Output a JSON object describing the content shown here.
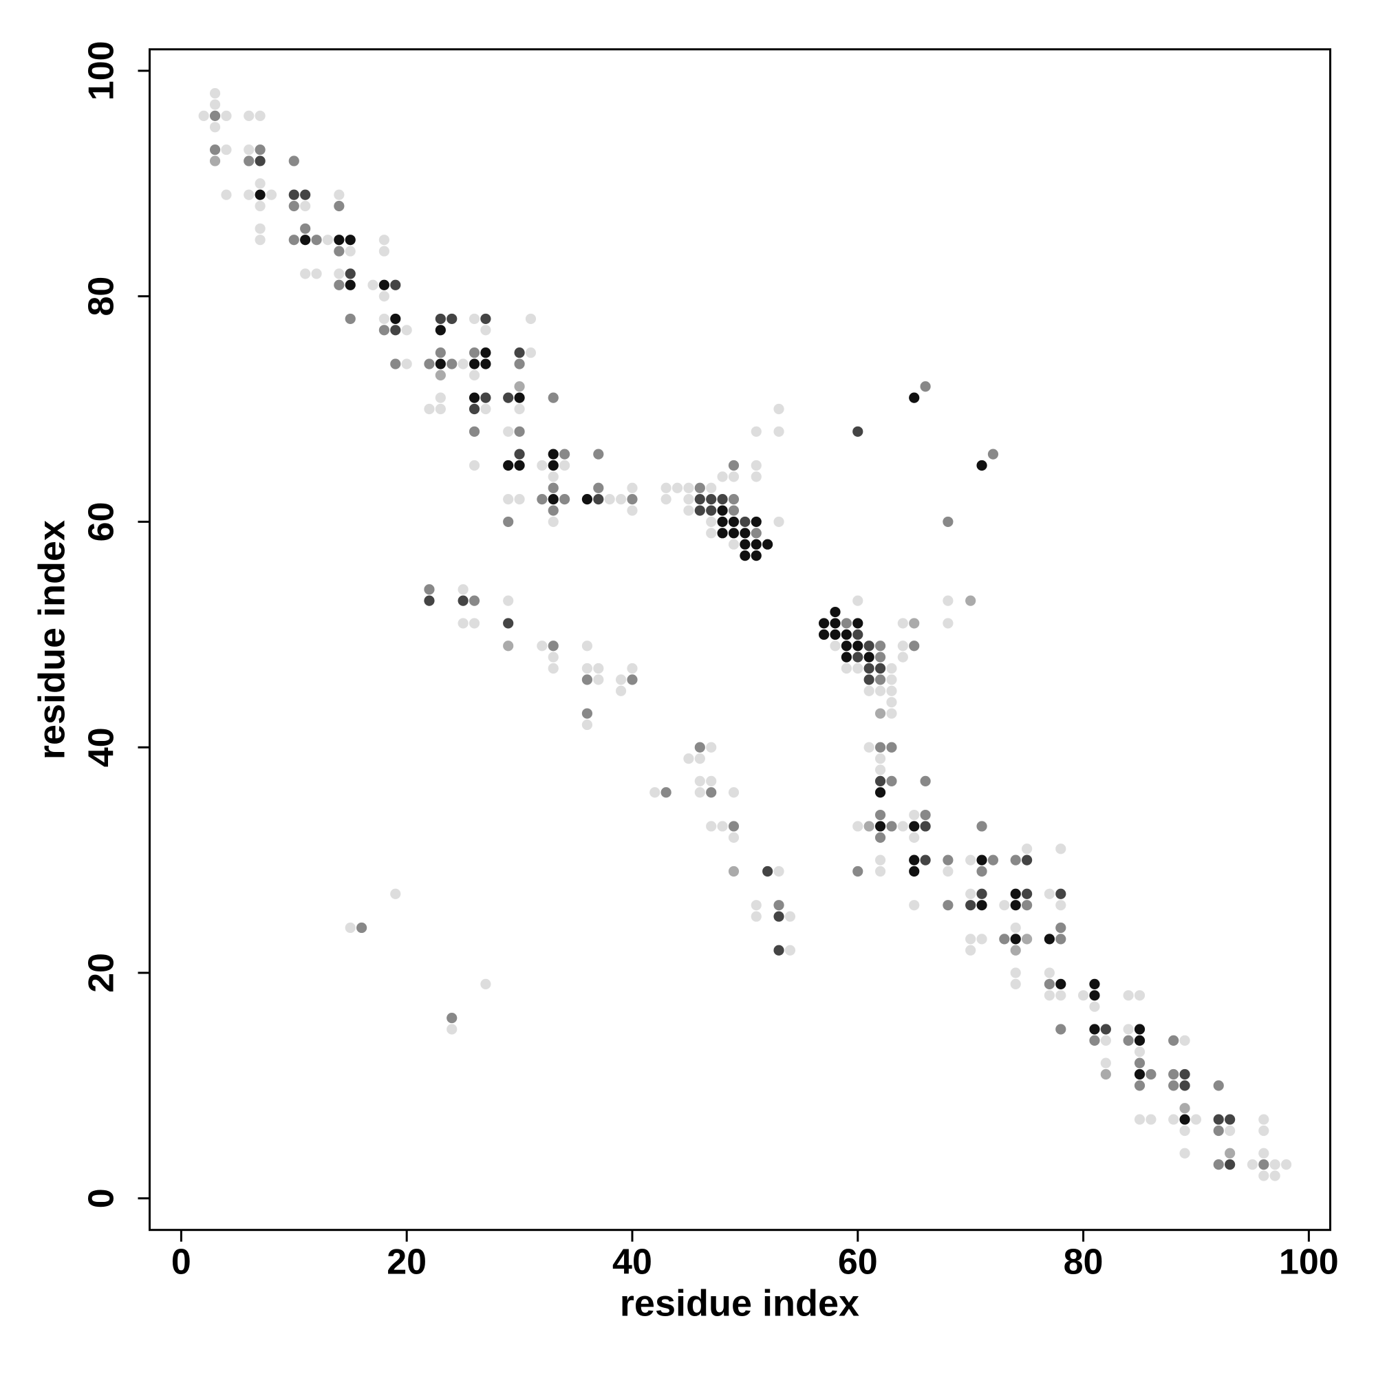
{
  "chart_data": {
    "type": "scatter",
    "x_label": "residue index",
    "y_label": "residue index",
    "xlim": [
      -2.8,
      101.9
    ],
    "ylim": [
      -2.8,
      101.9
    ],
    "xticks": [
      0,
      20,
      40,
      60,
      80,
      100
    ],
    "yticks": [
      0,
      20,
      40,
      60,
      80,
      100
    ],
    "series": [
      {
        "color": "#dddddd",
        "x": [
          2,
          3,
          3,
          3,
          4,
          4,
          6,
          7,
          6,
          4,
          6,
          8,
          7,
          7,
          7,
          7,
          11,
          13,
          14,
          15,
          11,
          12,
          14,
          17,
          18,
          18,
          18,
          18,
          20,
          20,
          25,
          26,
          27,
          26,
          27,
          22,
          23,
          23,
          26,
          31,
          31,
          30,
          29,
          32,
          34,
          33,
          33,
          29,
          30,
          38,
          39,
          40,
          40,
          43,
          44,
          45,
          43,
          45,
          47,
          45,
          47,
          47,
          49,
          48,
          49,
          51,
          51,
          51,
          53,
          53,
          53,
          25,
          25,
          26,
          29,
          32,
          33,
          33,
          36,
          36,
          37,
          37,
          39,
          39,
          40,
          36,
          58,
          59,
          60,
          63,
          63,
          61,
          62,
          63,
          63,
          63,
          60,
          64,
          64,
          64,
          68,
          68,
          47,
          45,
          46,
          46,
          47,
          46,
          42,
          49,
          47,
          48,
          49,
          53,
          51,
          51,
          54,
          54,
          15,
          19,
          24,
          27,
          61,
          62,
          62,
          60,
          64,
          65,
          65,
          62,
          62,
          68,
          65,
          70,
          70,
          70,
          71,
          70,
          73,
          75,
          74,
          74,
          74,
          77,
          78,
          77,
          77,
          78,
          78,
          80,
          81,
          82,
          82,
          84,
          85,
          84,
          85,
          85,
          86,
          89,
          88,
          90,
          89,
          89,
          93,
          96,
          96,
          95,
          97,
          98,
          96,
          96,
          97
        ],
        "values": [
          96,
          98,
          97,
          95,
          96,
          93,
          96,
          96,
          93,
          89,
          89,
          89,
          90,
          88,
          86,
          85,
          88,
          85,
          89,
          84,
          82,
          82,
          82,
          81,
          85,
          84,
          80,
          78,
          77,
          74,
          74,
          78,
          77,
          73,
          70,
          70,
          70,
          71,
          65,
          75,
          78,
          70,
          68,
          65,
          65,
          64,
          60,
          62,
          62,
          62,
          62,
          63,
          61,
          63,
          63,
          63,
          62,
          62,
          63,
          61,
          60,
          59,
          58,
          64,
          64,
          65,
          64,
          68,
          70,
          68,
          60,
          54,
          51,
          51,
          53,
          49,
          48,
          47,
          49,
          47,
          47,
          46,
          46,
          45,
          47,
          42,
          49,
          47,
          47,
          47,
          46,
          45,
          45,
          45,
          44,
          43,
          53,
          51,
          49,
          48,
          53,
          51,
          40,
          39,
          39,
          37,
          37,
          36,
          36,
          36,
          33,
          33,
          32,
          29,
          26,
          25,
          25,
          22,
          24,
          27,
          15,
          19,
          40,
          39,
          38,
          33,
          33,
          34,
          32,
          30,
          29,
          29,
          26,
          30,
          27,
          23,
          23,
          22,
          26,
          31,
          24,
          20,
          19,
          27,
          26,
          20,
          18,
          18,
          31,
          18,
          17,
          14,
          12,
          18,
          18,
          15,
          13,
          7,
          7,
          14,
          7,
          7,
          6,
          4,
          6,
          7,
          6,
          3,
          3,
          3,
          4,
          2,
          2
        ]
      },
      {
        "color": "#aaaaaa",
        "x": [
          3,
          23,
          30,
          29,
          62,
          70,
          65,
          49,
          61,
          75,
          74,
          82,
          89,
          93
        ],
        "values": [
          92,
          73,
          72,
          49,
          43,
          53,
          51,
          29,
          33,
          23,
          22,
          11,
          8,
          4
        ]
      },
      {
        "color": "#888888",
        "x": [
          3,
          3,
          6,
          7,
          10,
          10,
          11,
          10,
          12,
          14,
          14,
          14,
          15,
          18,
          19,
          22,
          23,
          24,
          26,
          26,
          30,
          30,
          33,
          34,
          32,
          34,
          33,
          33,
          29,
          37,
          37,
          40,
          46,
          49,
          49,
          51,
          49,
          66,
          72,
          68,
          22,
          26,
          33,
          36,
          40,
          36,
          59,
          62,
          62,
          62,
          65,
          46,
          47,
          43,
          49,
          53,
          16,
          24,
          62,
          63,
          63,
          66,
          62,
          63,
          66,
          62,
          60,
          68,
          68,
          72,
          71,
          71,
          75,
          74,
          73,
          78,
          78,
          77,
          78,
          81,
          84,
          85,
          86,
          85,
          88,
          88,
          88,
          92,
          92,
          92,
          96
        ],
        "values": [
          96,
          93,
          92,
          93,
          92,
          88,
          86,
          85,
          85,
          88,
          84,
          81,
          78,
          77,
          74,
          74,
          75,
          74,
          75,
          68,
          74,
          68,
          71,
          66,
          62,
          62,
          63,
          61,
          60,
          63,
          66,
          62,
          63,
          62,
          61,
          59,
          65,
          72,
          66,
          60,
          54,
          53,
          49,
          46,
          46,
          43,
          51,
          49,
          48,
          46,
          49,
          40,
          36,
          36,
          33,
          26,
          24,
          16,
          40,
          40,
          37,
          37,
          34,
          33,
          34,
          32,
          29,
          30,
          26,
          30,
          29,
          33,
          26,
          30,
          23,
          23,
          24,
          19,
          15,
          14,
          14,
          12,
          11,
          10,
          14,
          11,
          10,
          10,
          6,
          3,
          3
        ]
      },
      {
        "color": "#444444",
        "x": [
          7,
          10,
          11,
          15,
          19,
          19,
          23,
          24,
          27,
          27,
          26,
          30,
          29,
          30,
          37,
          46,
          47,
          48,
          46,
          47,
          50,
          60,
          22,
          25,
          29,
          60,
          61,
          60,
          61,
          62,
          61,
          62,
          52,
          53,
          53,
          66,
          66,
          71,
          70,
          75,
          75,
          78,
          82,
          89,
          89,
          92,
          93,
          93
        ],
        "values": [
          92,
          89,
          89,
          82,
          81,
          77,
          78,
          78,
          78,
          71,
          70,
          75,
          71,
          66,
          62,
          62,
          62,
          62,
          61,
          61,
          60,
          68,
          53,
          53,
          51,
          50,
          49,
          48,
          47,
          47,
          46,
          37,
          29,
          25,
          22,
          33,
          30,
          27,
          26,
          27,
          30,
          27,
          15,
          11,
          10,
          7,
          7,
          3
        ]
      },
      {
        "color": "#111111",
        "x": [
          7,
          11,
          14,
          15,
          15,
          18,
          19,
          23,
          23,
          26,
          27,
          27,
          26,
          30,
          29,
          30,
          33,
          33,
          33,
          36,
          48,
          48,
          49,
          51,
          48,
          49,
          50,
          50,
          51,
          52,
          50,
          51,
          65,
          71,
          57,
          58,
          58,
          60,
          57,
          58,
          59,
          59,
          60,
          59,
          61,
          62,
          62,
          65,
          65,
          65,
          71,
          71,
          74,
          74,
          74,
          77,
          78,
          81,
          81,
          81,
          85,
          85,
          85,
          89
        ],
        "values": [
          89,
          85,
          85,
          85,
          81,
          81,
          78,
          77,
          74,
          74,
          74,
          75,
          71,
          71,
          65,
          65,
          66,
          65,
          62,
          62,
          61,
          60,
          60,
          60,
          59,
          59,
          59,
          58,
          58,
          58,
          57,
          57,
          71,
          65,
          51,
          52,
          51,
          51,
          50,
          50,
          50,
          49,
          49,
          48,
          48,
          36,
          33,
          33,
          30,
          29,
          30,
          26,
          27,
          26,
          23,
          23,
          19,
          19,
          18,
          15,
          15,
          14,
          11,
          7
        ]
      }
    ]
  }
}
